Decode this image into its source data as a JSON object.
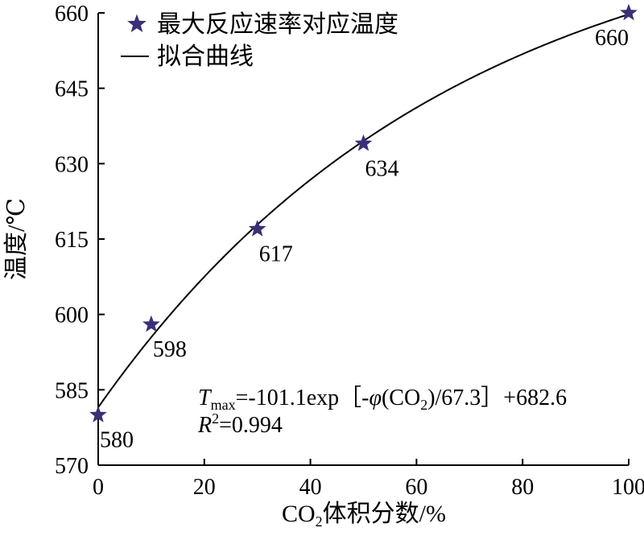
{
  "chart_data": {
    "type": "scatter",
    "xlabel": {
      "pre": "CO",
      "sub": "2",
      "post": "体积分数/%"
    },
    "ylabel": "温度/℃",
    "xlim": [
      0,
      100
    ],
    "ylim": [
      570,
      660
    ],
    "x_ticks": [
      "0",
      "20",
      "40",
      "60",
      "80",
      "100"
    ],
    "y_ticks": [
      "570",
      "585",
      "600",
      "615",
      "630",
      "645",
      "660"
    ],
    "series": [
      {
        "name": "最大反应速率对应温度",
        "marker": "star",
        "color": "#3b2f78",
        "x": [
          0,
          10,
          30,
          50,
          100
        ],
        "y": [
          580,
          598,
          617,
          634,
          660
        ],
        "labels": [
          "580",
          "598",
          "617",
          "634",
          "660"
        ]
      },
      {
        "name": "拟合曲线",
        "style": "line",
        "color": "#000000",
        "fit": {
          "a": -101.1,
          "b": 67.3,
          "c": 682.6
        }
      }
    ],
    "annotation": {
      "var": "T",
      "var_sub": "max",
      "eq_a": "=-101.1exp［-",
      "phi": "φ",
      "eq_b": "(CO",
      "eq_sub": "2",
      "eq_c": ")/67.3］+682.6",
      "r": "R",
      "r_sup": "2",
      "r_val": "=0.994"
    },
    "legend_position": "top-left",
    "grid": false
  }
}
